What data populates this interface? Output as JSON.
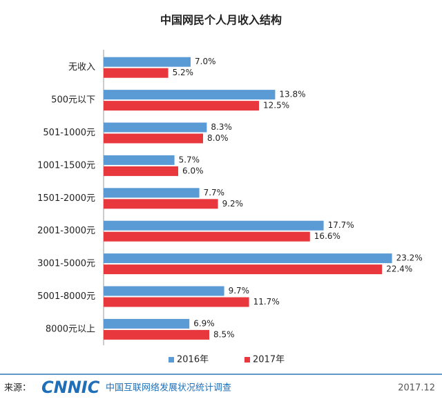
{
  "chart_data": {
    "type": "bar",
    "orientation": "horizontal",
    "title": "中国网民个人月收入结构",
    "categories": [
      "无收入",
      "500元以下",
      "501-1000元",
      "1001-1500元",
      "1501-2000元",
      "2001-3000元",
      "3001-5000元",
      "5001-8000元",
      "8000元以上"
    ],
    "series": [
      {
        "name": "2016年",
        "color": "#5b9bd5",
        "values": [
          7.0,
          13.8,
          8.3,
          5.7,
          7.7,
          17.7,
          23.2,
          9.7,
          6.9
        ],
        "value_labels": [
          "7.0%",
          "13.8%",
          "8.3%",
          "5.7%",
          "7.7%",
          "17.7%",
          "23.2%",
          "9.7%",
          "6.9%"
        ]
      },
      {
        "name": "2017年",
        "color": "#e8383d",
        "values": [
          5.2,
          12.5,
          8.0,
          6.0,
          9.2,
          16.6,
          22.4,
          11.7,
          8.5
        ],
        "value_labels": [
          "5.2%",
          "12.5%",
          "8.0%",
          "6.0%",
          "9.2%",
          "16.6%",
          "22.4%",
          "11.7%",
          "8.5%"
        ]
      }
    ],
    "xlim": [
      0,
      27
    ],
    "legend": "bottom"
  },
  "footer": {
    "source": "来源：",
    "logo": "CNNIC",
    "org": "中国互联网络发展状况统计调查",
    "date": "2017.12"
  }
}
